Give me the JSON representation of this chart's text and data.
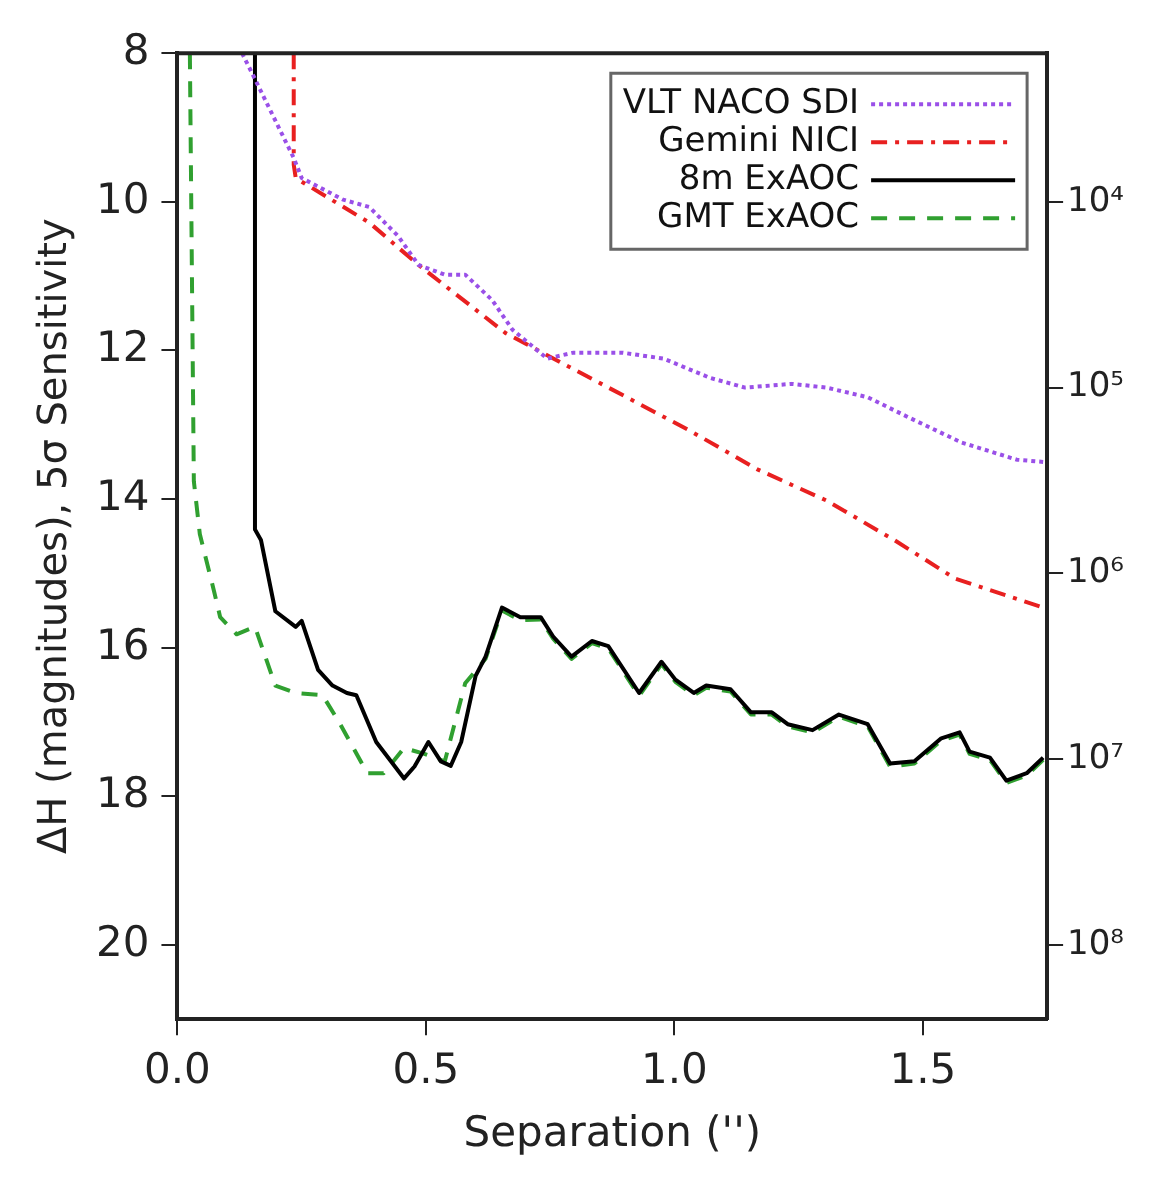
{
  "chart_data": {
    "type": "line",
    "xlabel": "Separation ('')",
    "ylabel": "ΔH (magnitudes), 5σ Sensitivity",
    "xlim": [
      0,
      1.75
    ],
    "xticks": [
      {
        "value": 0,
        "label": "0.0"
      },
      0.5,
      {
        "value": 1,
        "label": "1.0"
      },
      1.5
    ],
    "ylim": [
      21,
      8
    ],
    "yticks": [
      8,
      10,
      12,
      14,
      16,
      18,
      20
    ],
    "y2lim": [
      251000000,
      1585
    ],
    "y2ticks": [
      {
        "value": 10000,
        "label": "10⁴"
      },
      {
        "value": 100000,
        "label": "10⁵"
      },
      {
        "value": 1000000,
        "label": "10⁶"
      },
      {
        "value": 10000000,
        "label": "10⁷"
      },
      {
        "value": 100000000,
        "label": "10⁸"
      }
    ],
    "log": "y2",
    "grid": false,
    "legend": "top right",
    "marker": "none",
    "series": [
      {
        "name": "VLT NACO SDI",
        "color": "#9a50e8",
        "line_style": "dotted",
        "x": [
          0.13,
          0.148,
          0.234,
          0.25,
          0.333,
          0.386,
          0.444,
          0.485,
          0.538,
          0.579,
          0.633,
          0.674,
          0.744,
          0.797,
          0.895,
          0.978,
          1.072,
          1.142,
          1.236,
          1.306,
          1.389,
          1.471,
          1.578,
          1.689,
          1.742
        ],
        "values": [
          8,
          8.24,
          9.41,
          9.68,
          9.97,
          10.07,
          10.46,
          10.85,
          10.98,
          10.98,
          11.32,
          11.72,
          12.11,
          12.03,
          12.03,
          12.11,
          12.37,
          12.5,
          12.45,
          12.5,
          12.63,
          12.9,
          13.24,
          13.47,
          13.5
        ]
      },
      {
        "name": "Gemini NICI",
        "color": "#e82020",
        "line_style": "dashdot",
        "x": [
          0.234,
          0.234,
          0.238,
          0.386,
          0.485,
          0.661,
          1.031,
          1.167,
          1.306,
          1.442,
          1.565,
          1.742
        ],
        "values": [
          8,
          9.5,
          9.68,
          10.28,
          10.85,
          11.77,
          13.08,
          13.6,
          14.02,
          14.55,
          15.07,
          15.46
        ]
      },
      {
        "name": "8m ExAOC",
        "color": "#000000",
        "line_style": "solid",
        "x": [
          0.156,
          0.156,
          0.168,
          0.197,
          0.238,
          0.25,
          0.283,
          0.312,
          0.341,
          0.36,
          0.4,
          0.456,
          0.477,
          0.505,
          0.53,
          0.55,
          0.571,
          0.6,
          0.62,
          0.653,
          0.69,
          0.731,
          0.756,
          0.793,
          0.834,
          0.867,
          0.929,
          0.974,
          1.002,
          1.039,
          1.064,
          1.113,
          1.154,
          1.196,
          1.228,
          1.278,
          1.331,
          1.389,
          1.434,
          1.483,
          1.537,
          1.574,
          1.594,
          1.635,
          1.668,
          1.709,
          1.742
        ],
        "values": [
          8,
          14.41,
          14.55,
          15.51,
          15.72,
          15.64,
          16.3,
          16.51,
          16.61,
          16.64,
          17.27,
          17.76,
          17.6,
          17.27,
          17.53,
          17.59,
          17.27,
          16.38,
          16.12,
          15.46,
          15.59,
          15.59,
          15.85,
          16.12,
          15.91,
          15.98,
          16.61,
          16.19,
          16.43,
          16.61,
          16.51,
          16.56,
          16.87,
          16.87,
          17.03,
          17.11,
          16.9,
          17.03,
          17.56,
          17.53,
          17.22,
          17.14,
          17.4,
          17.48,
          17.79,
          17.69,
          17.48
        ]
      },
      {
        "name": "GMT ExAOC",
        "color": "#30a030",
        "line_style": "dashed",
        "x": [
          0.025,
          0.033,
          0.045,
          0.074,
          0.086,
          0.119,
          0.156,
          0.197,
          0.238,
          0.292,
          0.325,
          0.382,
          0.415,
          0.456,
          0.497,
          0.538,
          0.579,
          0.62,
          0.653,
          0.69,
          0.731,
          0.756,
          0.793,
          0.834,
          0.867,
          0.929,
          0.974,
          1.002,
          1.039,
          1.064,
          1.113,
          1.154,
          1.196,
          1.228,
          1.278,
          1.331,
          1.389,
          1.434,
          1.483,
          1.537,
          1.574,
          1.594,
          1.635,
          1.668,
          1.709,
          1.742
        ],
        "values": [
          8,
          13.76,
          14.47,
          15.25,
          15.59,
          15.82,
          15.72,
          16.51,
          16.61,
          16.64,
          17.0,
          17.69,
          17.69,
          17.35,
          17.43,
          17.53,
          16.48,
          16.15,
          15.5,
          15.63,
          15.62,
          15.88,
          16.15,
          15.94,
          16.01,
          16.65,
          16.22,
          16.46,
          16.64,
          16.54,
          16.59,
          16.9,
          16.9,
          17.06,
          17.14,
          16.93,
          17.06,
          17.6,
          17.56,
          17.25,
          17.17,
          17.43,
          17.51,
          17.82,
          17.72,
          17.51
        ]
      }
    ]
  }
}
